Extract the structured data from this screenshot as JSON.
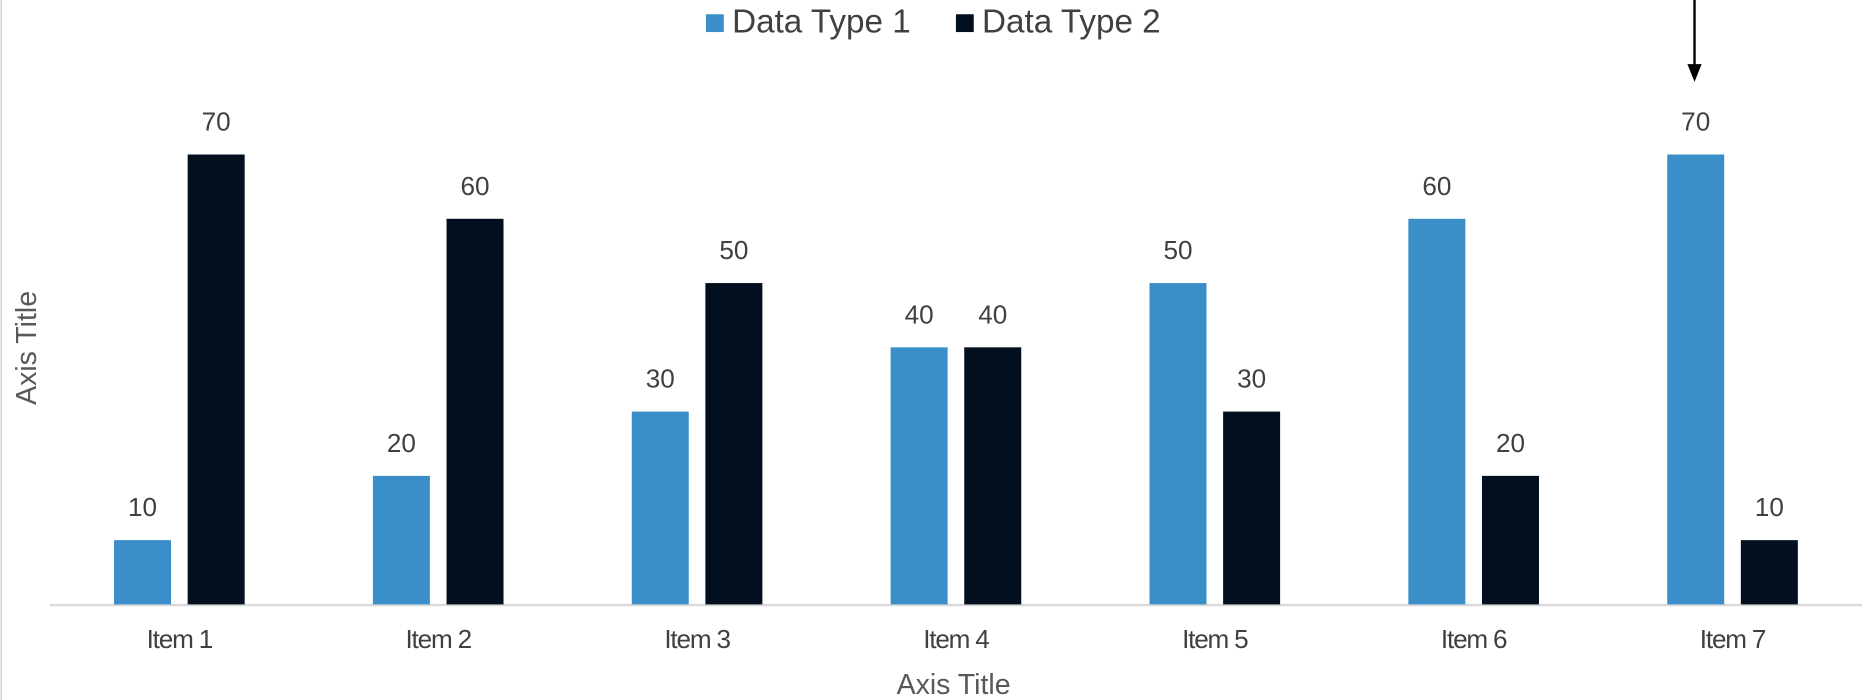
{
  "chart_data": {
    "type": "bar",
    "categories": [
      "Item 1",
      "Item 2",
      "Item 3",
      "Item 4",
      "Item 5",
      "Item 6",
      "Item 7"
    ],
    "series": [
      {
        "name": "Data Type 1",
        "color": "#3b8fc9",
        "values": [
          10,
          20,
          30,
          40,
          50,
          60,
          70
        ]
      },
      {
        "name": "Data Type 2",
        "color": "#020f1e",
        "values": [
          70,
          60,
          50,
          40,
          30,
          20,
          10
        ]
      }
    ],
    "ylim": [
      0,
      80
    ],
    "x_axis_title": "Axis Title",
    "y_axis_title": "Axis Title",
    "legend": "top"
  }
}
